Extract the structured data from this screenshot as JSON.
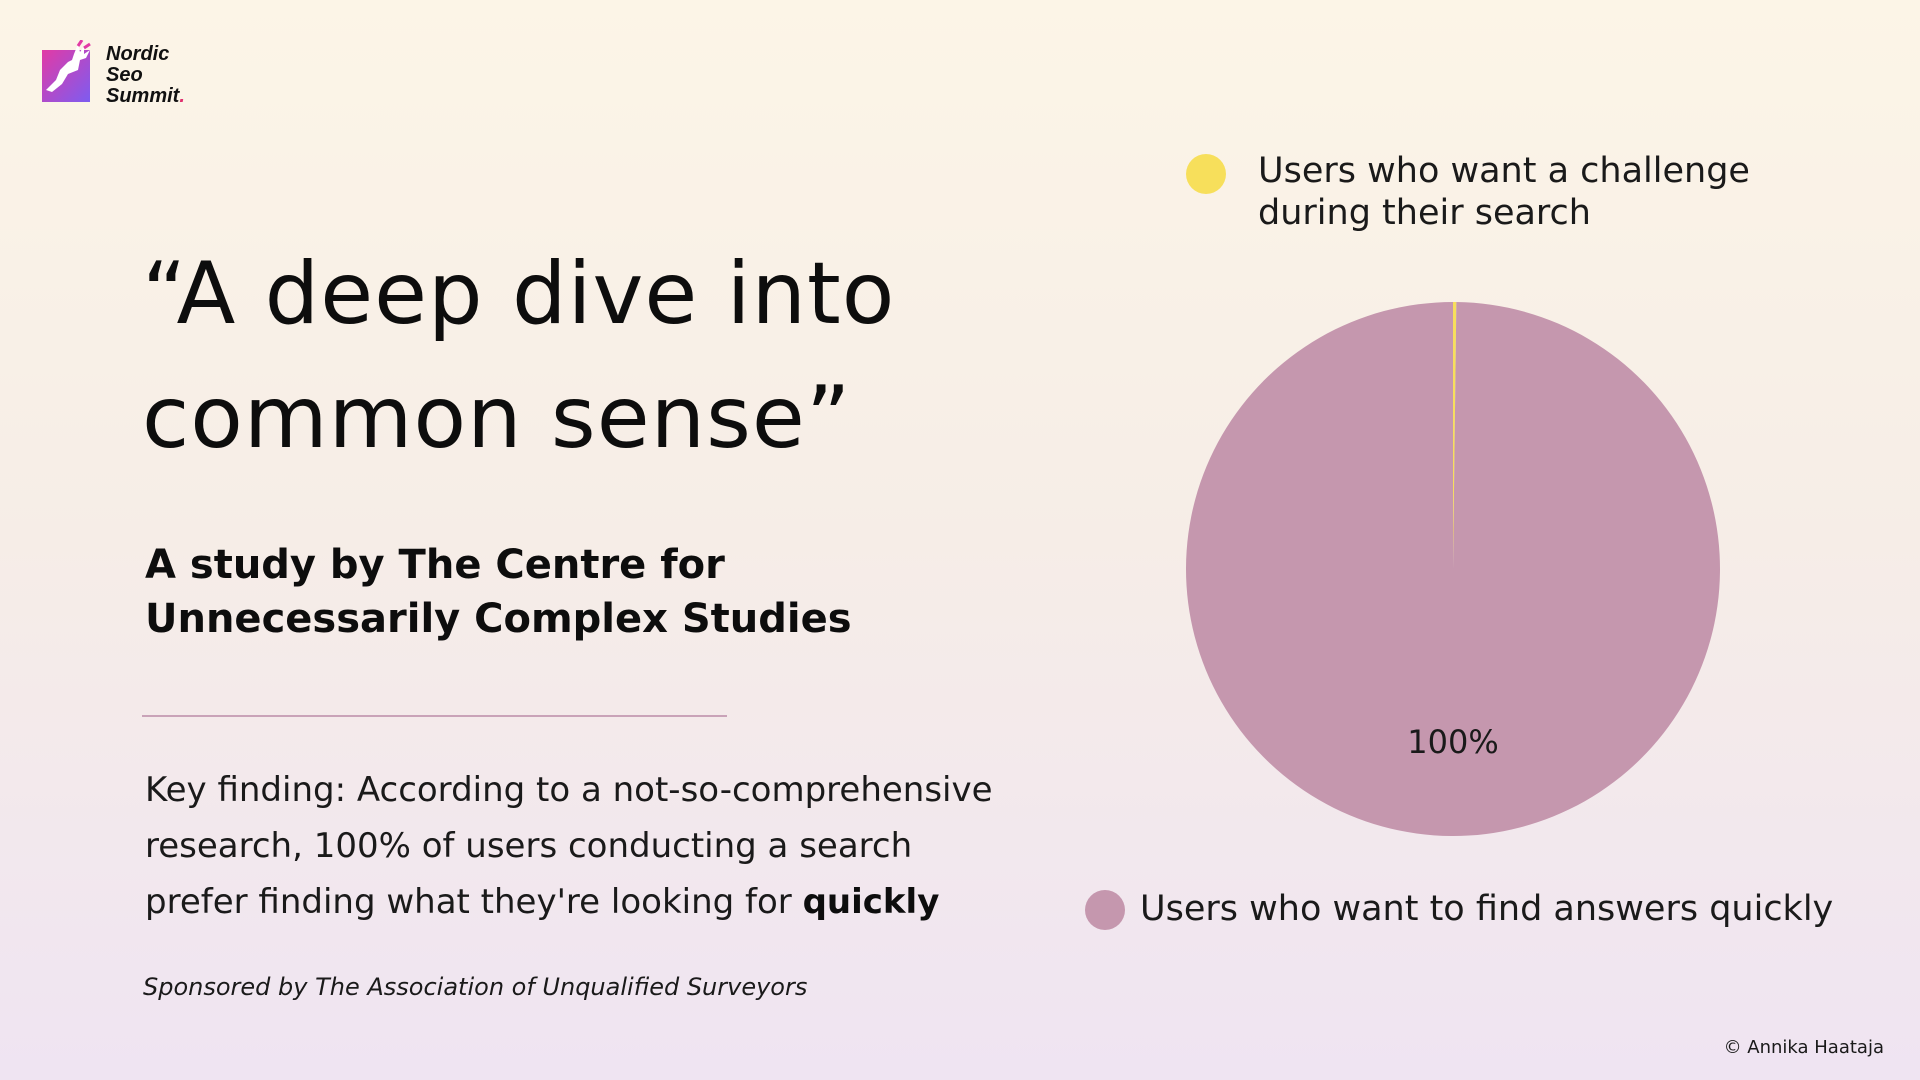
{
  "logo": {
    "line1": "Nordic",
    "line2": "Seo",
    "line3": "Summit",
    "dot": ".",
    "gradient_start": "#e23aa5",
    "gradient_end": "#7d5cf0"
  },
  "title": "“A deep dive into common sense”",
  "subtitle": "A study by The Centre for Unnecessarily Complex Studies",
  "finding": {
    "text": "Key finding: According to a not-so-comprehensive research, 100% of users conducting a search prefer finding what they're looking for ",
    "emphasis": "quickly"
  },
  "sponsor": "Sponsored by The Association of Unqualified Surveyors",
  "copyright": "© Annika Haataja",
  "colors": {
    "challenge": "#f7df5b",
    "quickly": "#c597ae",
    "divider": "#c9a3b8"
  },
  "chart_data": {
    "type": "pie",
    "title": "",
    "series": [
      {
        "name": "Users who want a challenge during their search",
        "value": 0.2,
        "color": "#f7df5b"
      },
      {
        "name": "Users who want to find answers quickly",
        "value": 99.8,
        "color": "#c597ae"
      }
    ],
    "data_labels": [
      {
        "series": "Users who want to find answers quickly",
        "text": "100%"
      }
    ],
    "legend": [
      {
        "label": "Users who want a challenge during their search",
        "color": "#f7df5b",
        "placement": "top"
      },
      {
        "label": "Users who want to find answers quickly",
        "color": "#c597ae",
        "placement": "bottom"
      }
    ]
  }
}
